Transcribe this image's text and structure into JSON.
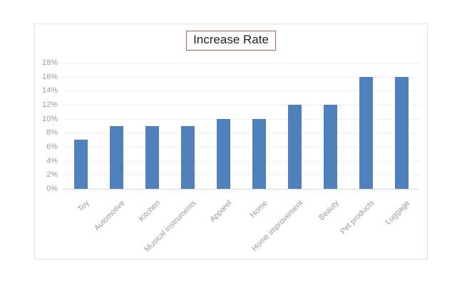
{
  "chart_data": {
    "type": "bar",
    "title": "Increase Rate",
    "categories": [
      "Toy",
      "Automotive",
      "Kitchen",
      "Musical instruments",
      "Apparel",
      "Home",
      "Home improvement",
      "Beauty",
      "Pet products",
      "Luggage"
    ],
    "values": [
      7,
      9,
      9,
      9,
      10,
      10,
      12,
      12,
      16,
      16
    ],
    "unit": "%",
    "xlabel": "",
    "ylabel": "",
    "ylim": [
      0,
      18
    ],
    "ytick_step": 2,
    "ytick_labels": [
      "0%",
      "2%",
      "4%",
      "6%",
      "8%",
      "10%",
      "12%",
      "14%",
      "16%",
      "18%"
    ],
    "grid": true,
    "legend": "none",
    "colors": {
      "bar": "#4e81bc",
      "gridline": "#f2efef",
      "axis_line": "#d9d9d9",
      "tick_label": "#9b9b9b",
      "title_text": "#1f1f1f",
      "title_border": "#ac5f5d",
      "frame_border": "#e2e2e2"
    }
  }
}
